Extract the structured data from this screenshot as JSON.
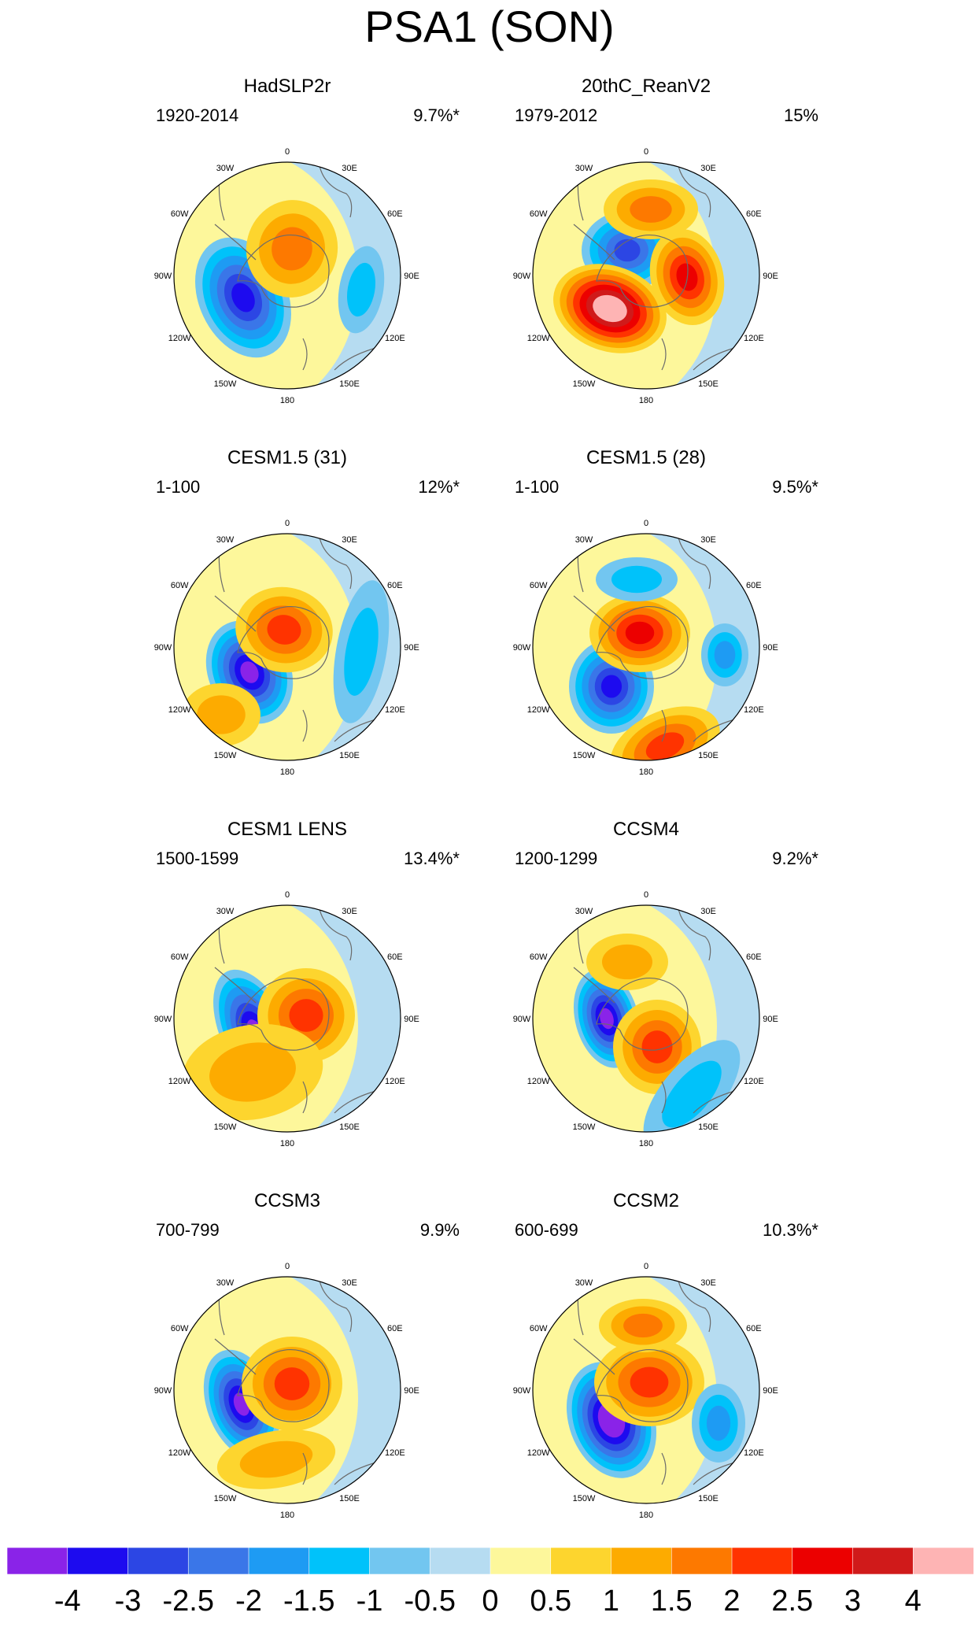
{
  "figure_title": "PSA1 (SON)",
  "colors": {
    "ocean_pos": "#fdf79b",
    "ocean_neg": "#b6dcf1",
    "coast": "#6b6b6b",
    "border": "#000000"
  },
  "longitude_labels": [
    "0",
    "30E",
    "60E",
    "90E",
    "120E",
    "150E",
    "180",
    "150W",
    "120W",
    "90W",
    "60W",
    "30W"
  ],
  "panels": [
    {
      "title": "HadSLP2r",
      "period": "1920-2014",
      "variance": "9.7%*"
    },
    {
      "title": "20thC_ReanV2",
      "period": "1979-2012",
      "variance": "15%"
    },
    {
      "title": "CESM1.5 (31)",
      "period": "1-100",
      "variance": "12%*"
    },
    {
      "title": "CESM1.5 (28)",
      "period": "1-100",
      "variance": "9.5%*"
    },
    {
      "title": "CESM1 LENS",
      "period": "1500-1599",
      "variance": "13.4%*"
    },
    {
      "title": "CCSM4",
      "period": "1200-1299",
      "variance": "9.2%*"
    },
    {
      "title": "CCSM3",
      "period": "700-799",
      "variance": "9.9%"
    },
    {
      "title": "CCSM2",
      "period": "600-699",
      "variance": "10.3%*"
    }
  ],
  "colorbar": {
    "labels": [
      "-4",
      "-3",
      "-2.5",
      "-2",
      "-1.5",
      "-1",
      "-0.5",
      "0",
      "0.5",
      "1",
      "1.5",
      "2",
      "2.5",
      "3",
      "4"
    ],
    "colors": [
      "#8a23e8",
      "#1d0bef",
      "#2c46e4",
      "#3a76e8",
      "#1e9bf3",
      "#00c2fa",
      "#72c6f0",
      "#b6dcf1",
      "#fdf79b",
      "#fdd52e",
      "#fdab00",
      "#fd7900",
      "#ff3300",
      "#ec0000",
      "#d01a1a",
      "#feb4b4"
    ]
  }
}
